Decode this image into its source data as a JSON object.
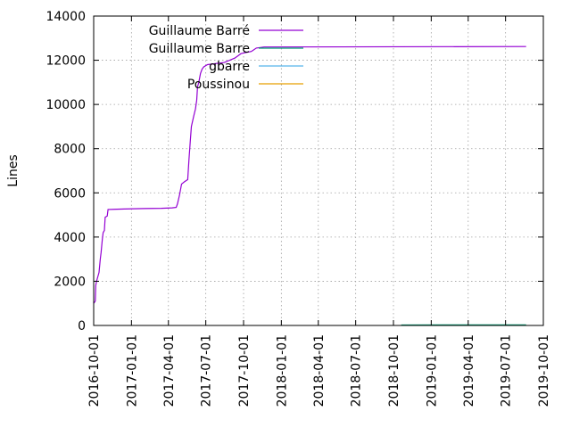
{
  "chart_data": {
    "type": "line",
    "title": "",
    "xlabel": "",
    "ylabel": "Lines",
    "ylim": [
      0,
      14000
    ],
    "xlim": [
      "2016-10-01",
      "2019-10-01"
    ],
    "y_ticks": [
      0,
      2000,
      4000,
      6000,
      8000,
      10000,
      12000,
      14000
    ],
    "x_ticks": [
      "2016-10-01",
      "2017-01-01",
      "2017-04-01",
      "2017-07-01",
      "2017-10-01",
      "2018-01-01",
      "2018-04-01",
      "2018-07-01",
      "2018-10-01",
      "2019-01-01",
      "2019-04-01",
      "2019-07-01",
      "2019-10-01"
    ],
    "grid": true,
    "legend_position": "top-left",
    "series": [
      {
        "name": "Guillaume Barré",
        "color": "#9400d3",
        "points": [
          [
            "2016-10-01",
            1000
          ],
          [
            "2016-10-03",
            1050
          ],
          [
            "2016-10-05",
            1100
          ],
          [
            "2016-10-06",
            1800
          ],
          [
            "2016-10-08",
            2000
          ],
          [
            "2016-10-11",
            2200
          ],
          [
            "2016-10-14",
            2400
          ],
          [
            "2016-10-17",
            3000
          ],
          [
            "2016-10-19",
            3300
          ],
          [
            "2016-10-22",
            3900
          ],
          [
            "2016-10-24",
            4200
          ],
          [
            "2016-10-27",
            4300
          ],
          [
            "2016-10-29",
            4900
          ],
          [
            "2016-11-03",
            4950
          ],
          [
            "2016-11-05",
            5250
          ],
          [
            "2016-12-15",
            5270
          ],
          [
            "2017-02-01",
            5290
          ],
          [
            "2017-03-15",
            5300
          ],
          [
            "2017-04-10",
            5320
          ],
          [
            "2017-04-20",
            5340
          ],
          [
            "2017-04-23",
            5500
          ],
          [
            "2017-04-28",
            5900
          ],
          [
            "2017-05-03",
            6400
          ],
          [
            "2017-05-10",
            6500
          ],
          [
            "2017-05-18",
            6600
          ],
          [
            "2017-05-21",
            7500
          ],
          [
            "2017-05-24",
            8300
          ],
          [
            "2017-05-27",
            9000
          ],
          [
            "2017-06-02",
            9500
          ],
          [
            "2017-06-06",
            9800
          ],
          [
            "2017-06-09",
            10200
          ],
          [
            "2017-06-11",
            10800
          ],
          [
            "2017-06-14",
            11000
          ],
          [
            "2017-06-18",
            11400
          ],
          [
            "2017-06-22",
            11600
          ],
          [
            "2017-06-26",
            11700
          ],
          [
            "2017-07-05",
            11800
          ],
          [
            "2017-08-15",
            11900
          ],
          [
            "2017-09-10",
            12100
          ],
          [
            "2017-09-25",
            12300
          ],
          [
            "2017-10-20",
            12400
          ],
          [
            "2017-11-01",
            12550
          ],
          [
            "2017-11-20",
            12600
          ],
          [
            "2019-08-20",
            12620
          ]
        ]
      },
      {
        "name": "Guillaume Barre",
        "color": "#009e73",
        "points": [
          [
            "2018-10-20",
            20
          ],
          [
            "2019-02-01",
            25
          ],
          [
            "2019-05-01",
            30
          ],
          [
            "2019-08-20",
            30
          ]
        ]
      },
      {
        "name": "gbarre",
        "color": "#56b4e9",
        "points": []
      },
      {
        "name": "Poussinou",
        "color": "#e69f00",
        "points": []
      }
    ]
  }
}
